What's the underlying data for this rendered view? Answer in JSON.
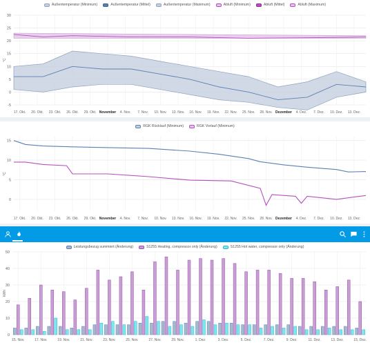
{
  "colors": {
    "blue": "#5b7fb1",
    "blue_fill": "#a7b9cd",
    "purple": "#b54fbd",
    "purple_fill": "#c79fd2",
    "cyan": "#4dd6e6",
    "gray": "#8ea3bd",
    "appbar": "#039be5"
  },
  "appbar": {
    "left_icons": [
      "person-outline-icon",
      "flame-icon"
    ],
    "right_icons": [
      "search-icon",
      "chat-icon",
      "more-vert-icon"
    ]
  },
  "chart_data": [
    {
      "type": "line",
      "unit": "°C",
      "ylim": [
        -5,
        30
      ],
      "yticks": [
        "-5",
        "0",
        "5",
        "10",
        "15",
        "20",
        "25",
        "30"
      ],
      "yticks_values": [
        -5,
        0,
        5,
        10,
        15,
        20,
        25,
        30
      ],
      "x_start": "2023-10-16",
      "x_end": "2023-12-15",
      "xticks": [
        "17. Okt.",
        "20. Okt.",
        "23. Okt.",
        "26. Okt.",
        "29. Okt.",
        "November",
        "4. Nov.",
        "7. Nov.",
        "10. Nov.",
        "13. Nov.",
        "16. Nov.",
        "19. Nov.",
        "22. Nov.",
        "25. Nov.",
        "28. Nov.",
        "Dezember",
        "4. Dez.",
        "7. Dez.",
        "10. Dez.",
        "13. Dez."
      ],
      "xticks_dates": [
        "2023-10-17",
        "2023-10-20",
        "2023-10-23",
        "2023-10-26",
        "2023-10-29",
        "2023-11-01",
        "2023-11-04",
        "2023-11-07",
        "2023-11-10",
        "2023-11-13",
        "2023-11-16",
        "2023-11-19",
        "2023-11-22",
        "2023-11-25",
        "2023-11-28",
        "2023-12-01",
        "2023-12-04",
        "2023-12-07",
        "2023-12-10",
        "2023-12-13"
      ],
      "grid": true,
      "legend_position": "top-center",
      "legend": [
        {
          "name": "Außentemperatur (Minimum)",
          "color": "#c4d0de",
          "border": "#8ea3bd"
        },
        {
          "name": "Außentemperatur (Mittel)",
          "color": "#5b7fb1",
          "border": "#3f5f8d"
        },
        {
          "name": "Außentemperatur (Maximum)",
          "color": "#c4d0de",
          "border": "#8ea3bd"
        },
        {
          "name": "Abluft (Minimum)",
          "color": "#e2c4e8",
          "border": "#b54fbd"
        },
        {
          "name": "Abluft (Mittel)",
          "color": "#b54fbd",
          "border": "#8e2f96"
        },
        {
          "name": "Abluft (Maximum)",
          "color": "#e2c4e8",
          "border": "#b54fbd"
        }
      ],
      "series": [
        {
          "name": "Außentemperatur (Minimum)",
          "x": [
            "2023-10-16",
            "2023-10-21",
            "2023-10-26",
            "2023-10-31",
            "2023-11-05",
            "2023-11-10",
            "2023-11-15",
            "2023-11-20",
            "2023-11-25",
            "2023-11-30",
            "2023-12-05",
            "2023-12-10",
            "2023-12-15"
          ],
          "values": [
            1,
            0,
            2,
            3,
            3,
            1,
            -1,
            -3,
            -4,
            -6,
            -7,
            -2,
            0
          ]
        },
        {
          "name": "Außentemperatur (Mittel)",
          "x": [
            "2023-10-16",
            "2023-10-21",
            "2023-10-26",
            "2023-10-31",
            "2023-11-05",
            "2023-11-10",
            "2023-11-15",
            "2023-11-20",
            "2023-11-25",
            "2023-11-30",
            "2023-12-05",
            "2023-12-10",
            "2023-12-15"
          ],
          "values": [
            6,
            6,
            10,
            9,
            9,
            7,
            5,
            2,
            0,
            -3,
            -2,
            3,
            2
          ]
        },
        {
          "name": "Außentemperatur (Maximum)",
          "x": [
            "2023-10-16",
            "2023-10-21",
            "2023-10-26",
            "2023-10-31",
            "2023-11-05",
            "2023-11-10",
            "2023-11-15",
            "2023-11-20",
            "2023-11-25",
            "2023-11-30",
            "2023-12-05",
            "2023-12-10",
            "2023-12-15"
          ],
          "values": [
            10,
            11,
            16,
            15,
            14,
            12,
            10,
            8,
            6,
            2,
            4,
            8,
            4
          ]
        },
        {
          "name": "Abluft (Minimum)",
          "x": [
            "2023-10-16",
            "2023-11-15",
            "2023-12-15"
          ],
          "values": [
            21,
            21,
            21
          ]
        },
        {
          "name": "Abluft (Mittel)",
          "x": [
            "2023-10-16",
            "2023-10-21",
            "2023-10-26",
            "2023-11-05",
            "2023-11-15",
            "2023-11-25",
            "2023-12-05",
            "2023-12-15"
          ],
          "values": [
            22.5,
            21.5,
            22,
            21.5,
            21.5,
            21,
            21.2,
            21.5
          ]
        },
        {
          "name": "Abluft (Maximum)",
          "x": [
            "2023-10-16",
            "2023-11-15",
            "2023-12-15"
          ],
          "values": [
            23,
            22.5,
            22
          ]
        }
      ]
    },
    {
      "type": "line",
      "unit": "°C",
      "ylim": [
        -3,
        16
      ],
      "yticks": [
        "0",
        "5",
        "10",
        "15"
      ],
      "yticks_values": [
        0,
        5,
        10,
        15
      ],
      "x_start": "2023-10-16",
      "x_end": "2023-12-15",
      "xticks": [
        "17. Okt.",
        "20. Okt.",
        "23. Okt.",
        "26. Okt.",
        "29. Okt.",
        "November",
        "4. Nov.",
        "7. Nov.",
        "10. Nov.",
        "13. Nov.",
        "16. Nov.",
        "19. Nov.",
        "22. Nov.",
        "25. Nov.",
        "28. Nov.",
        "Dezember",
        "4. Dez.",
        "7. Dez.",
        "10. Dez.",
        "13. Dez."
      ],
      "xticks_dates": [
        "2023-10-17",
        "2023-10-20",
        "2023-10-23",
        "2023-10-26",
        "2023-10-29",
        "2023-11-01",
        "2023-11-04",
        "2023-11-07",
        "2023-11-10",
        "2023-11-13",
        "2023-11-16",
        "2023-11-19",
        "2023-11-22",
        "2023-11-25",
        "2023-11-28",
        "2023-12-01",
        "2023-12-04",
        "2023-12-07",
        "2023-12-10",
        "2023-12-13"
      ],
      "grid": true,
      "legend_position": "top-center",
      "legend": [
        {
          "name": "RGK Rücklauf (Minimum)",
          "color": "#c4d0de",
          "border": "#5b7fb1"
        },
        {
          "name": "RGK Vorlauf (Minimum)",
          "color": "#e2c4e8",
          "border": "#b54fbd"
        }
      ],
      "series": [
        {
          "name": "RGK Rücklauf (Minimum)",
          "x": [
            "2023-10-16",
            "2023-10-18",
            "2023-10-21",
            "2023-10-26",
            "2023-11-01",
            "2023-11-08",
            "2023-11-15",
            "2023-11-20",
            "2023-11-25",
            "2023-11-27",
            "2023-12-01",
            "2023-12-05",
            "2023-12-10",
            "2023-12-12",
            "2023-12-15"
          ],
          "values": [
            15,
            14,
            13.6,
            13.4,
            13.2,
            13,
            12.3,
            11.5,
            10.4,
            9.6,
            8.8,
            8.2,
            7.6,
            7,
            7.1
          ]
        },
        {
          "name": "RGK Vorlauf (Minimum)",
          "x": [
            "2023-10-16",
            "2023-10-18",
            "2023-10-21",
            "2023-10-25",
            "2023-10-26",
            "2023-11-01",
            "2023-11-08",
            "2023-11-15",
            "2023-11-22",
            "2023-11-27",
            "2023-11-28",
            "2023-11-29",
            "2023-12-03",
            "2023-12-04",
            "2023-12-05",
            "2023-12-10",
            "2023-12-15"
          ],
          "values": [
            9.5,
            9.5,
            8.9,
            8.6,
            6.5,
            6.5,
            5.8,
            4.9,
            4.7,
            2.8,
            -1.5,
            1.2,
            0.8,
            -1,
            0.8,
            0,
            1
          ]
        }
      ]
    },
    {
      "type": "bar",
      "unit": "kWh",
      "ylim": [
        0,
        50
      ],
      "yticks": [
        "0",
        "10",
        "20",
        "30",
        "40",
        "50"
      ],
      "yticks_values": [
        0,
        10,
        20,
        30,
        40,
        50
      ],
      "x_start": "2023-11-15",
      "x_end": "2023-12-16",
      "xticks": [
        "15. Nov.",
        "17. Nov.",
        "19. Nov.",
        "21. Nov.",
        "23. Nov.",
        "25. Nov.",
        "27. Nov.",
        "29. Nov.",
        "1. Dez.",
        "3. Dez.",
        "5. Dez.",
        "7. Dez.",
        "9. Dez.",
        "11. Dez.",
        "13. Dez.",
        "15. Dez."
      ],
      "xticks_dates": [
        "2023-11-15",
        "2023-11-17",
        "2023-11-19",
        "2023-11-21",
        "2023-11-23",
        "2023-11-25",
        "2023-11-27",
        "2023-11-29",
        "2023-12-01",
        "2023-12-03",
        "2023-12-05",
        "2023-12-07",
        "2023-12-09",
        "2023-12-11",
        "2023-12-13",
        "2023-12-15"
      ],
      "grid": true,
      "legend_position": "top-center",
      "legend": [
        {
          "name": "Leistungsbezug summiert (Änderung)",
          "color": "#a7b9cd",
          "border": "#5b7fb1"
        },
        {
          "name": "S1255 Heating, compressor only (Änderung)",
          "color": "#c79fd2",
          "border": "#9b4fb0"
        },
        {
          "name": "S1255 Hot water, compressor only (Änderung)",
          "color": "#7ee6f0",
          "border": "#2cb8c8"
        }
      ],
      "categories": [
        "2023-11-15",
        "2023-11-16",
        "2023-11-17",
        "2023-11-18",
        "2023-11-19",
        "2023-11-20",
        "2023-11-21",
        "2023-11-22",
        "2023-11-23",
        "2023-11-24",
        "2023-11-25",
        "2023-11-26",
        "2023-11-27",
        "2023-11-28",
        "2023-11-29",
        "2023-11-30",
        "2023-12-01",
        "2023-12-02",
        "2023-12-03",
        "2023-12-04",
        "2023-12-05",
        "2023-12-06",
        "2023-12-07",
        "2023-12-08",
        "2023-12-09",
        "2023-12-10",
        "2023-12-11",
        "2023-12-12",
        "2023-12-13",
        "2023-12-14",
        "2023-12-15"
      ],
      "series": [
        {
          "name": "Leistungsbezug summiert (Änderung)",
          "values": [
            4,
            4,
            5,
            5,
            5,
            4,
            5,
            6,
            6,
            6,
            6,
            7,
            7,
            8,
            8,
            7,
            8,
            8,
            7,
            7,
            6,
            6,
            6,
            6,
            6,
            5,
            5,
            5,
            5,
            5,
            4
          ]
        },
        {
          "name": "S1255 Heating, compressor only (Änderung)",
          "values": [
            18,
            22,
            30,
            27,
            26,
            21,
            28,
            39,
            33,
            35,
            38,
            27,
            44,
            47,
            39,
            45,
            46,
            45,
            46,
            43,
            38,
            39,
            39,
            37,
            34,
            34,
            32,
            27,
            29,
            33,
            20
          ]
        },
        {
          "name": "S1255 Hot water, compressor only (Änderung)",
          "values": [
            3,
            3,
            2,
            10,
            3,
            3,
            3,
            7,
            8,
            6,
            8,
            11,
            8,
            5,
            6,
            5,
            9,
            6,
            7,
            6,
            6,
            4,
            5,
            4,
            5,
            3,
            3,
            4,
            3,
            3,
            3
          ]
        }
      ]
    }
  ]
}
